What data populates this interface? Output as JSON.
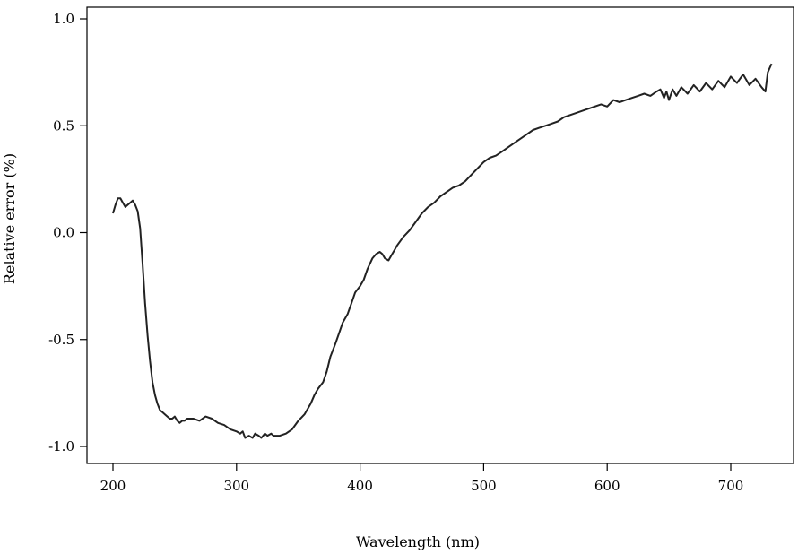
{
  "chart_data": {
    "type": "line",
    "title": "",
    "xlabel": "Wavelength (nm)",
    "ylabel": "Relative error (%)",
    "xlim": [
      195,
      750
    ],
    "ylim": [
      -1.1,
      1.05
    ],
    "x_ticks": [
      200,
      300,
      400,
      500,
      600,
      700
    ],
    "y_ticks": [
      1.0,
      0.5,
      0.0,
      -0.5,
      -1.0
    ],
    "y_tick_labels": [
      "1.0",
      "0.5",
      "0.0",
      "-0.5",
      "-1.0"
    ],
    "grid": false,
    "legend": "none",
    "line_color": "#222222",
    "series": [
      {
        "x": [
          200,
          202,
          204,
          206,
          208,
          210,
          212,
          214,
          216,
          218,
          220,
          222,
          224,
          226,
          228,
          230,
          232,
          234,
          236,
          238,
          240,
          242,
          244,
          246,
          248,
          250,
          252,
          254,
          256,
          258,
          260,
          265,
          270,
          275,
          280,
          285,
          290,
          295,
          300,
          303,
          305,
          307,
          310,
          313,
          315,
          318,
          320,
          323,
          325,
          328,
          330,
          335,
          340,
          345,
          350,
          355,
          360,
          363,
          366,
          370,
          373,
          376,
          380,
          383,
          386,
          390,
          393,
          396,
          400,
          403,
          406,
          410,
          413,
          416,
          418,
          420,
          423,
          425,
          428,
          430,
          435,
          440,
          445,
          450,
          455,
          460,
          465,
          470,
          475,
          480,
          485,
          490,
          495,
          500,
          505,
          510,
          515,
          520,
          525,
          530,
          535,
          540,
          545,
          550,
          555,
          560,
          565,
          570,
          575,
          580,
          585,
          590,
          595,
          600,
          605,
          610,
          615,
          620,
          625,
          630,
          635,
          640,
          643,
          646,
          648,
          650,
          653,
          656,
          660,
          665,
          670,
          675,
          680,
          685,
          690,
          695,
          700,
          705,
          710,
          715,
          720,
          725,
          728,
          730,
          733
        ],
        "y": [
          0.09,
          0.13,
          0.16,
          0.16,
          0.14,
          0.12,
          0.13,
          0.14,
          0.15,
          0.13,
          0.1,
          0.02,
          -0.15,
          -0.33,
          -0.48,
          -0.6,
          -0.7,
          -0.76,
          -0.8,
          -0.83,
          -0.84,
          -0.85,
          -0.86,
          -0.87,
          -0.87,
          -0.86,
          -0.88,
          -0.89,
          -0.88,
          -0.88,
          -0.87,
          -0.87,
          -0.88,
          -0.86,
          -0.87,
          -0.89,
          -0.9,
          -0.92,
          -0.93,
          -0.94,
          -0.93,
          -0.96,
          -0.95,
          -0.96,
          -0.94,
          -0.95,
          -0.96,
          -0.94,
          -0.95,
          -0.94,
          -0.95,
          -0.95,
          -0.94,
          -0.92,
          -0.88,
          -0.85,
          -0.8,
          -0.76,
          -0.73,
          -0.7,
          -0.65,
          -0.58,
          -0.52,
          -0.47,
          -0.42,
          -0.38,
          -0.33,
          -0.28,
          -0.25,
          -0.22,
          -0.17,
          -0.12,
          -0.1,
          -0.09,
          -0.1,
          -0.12,
          -0.13,
          -0.11,
          -0.08,
          -0.06,
          -0.02,
          0.01,
          0.05,
          0.09,
          0.12,
          0.14,
          0.17,
          0.19,
          0.21,
          0.22,
          0.24,
          0.27,
          0.3,
          0.33,
          0.35,
          0.36,
          0.38,
          0.4,
          0.42,
          0.44,
          0.46,
          0.48,
          0.49,
          0.5,
          0.51,
          0.52,
          0.54,
          0.55,
          0.56,
          0.57,
          0.58,
          0.59,
          0.6,
          0.59,
          0.62,
          0.61,
          0.62,
          0.63,
          0.64,
          0.65,
          0.64,
          0.66,
          0.67,
          0.63,
          0.66,
          0.62,
          0.67,
          0.64,
          0.68,
          0.65,
          0.69,
          0.66,
          0.7,
          0.67,
          0.71,
          0.68,
          0.73,
          0.7,
          0.74,
          0.69,
          0.72,
          0.68,
          0.66,
          0.75,
          0.79
        ]
      }
    ]
  }
}
